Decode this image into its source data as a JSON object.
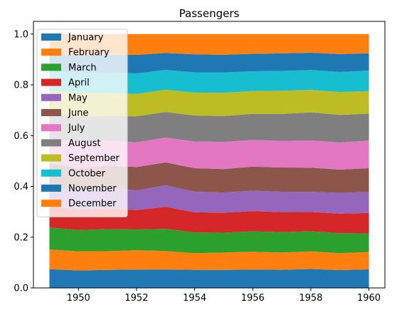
{
  "chart_data": {
    "type": "area",
    "stacked": true,
    "normalized": true,
    "title": "Passengers",
    "xlabel": "",
    "ylabel": "",
    "x": [
      1949,
      1950,
      1951,
      1952,
      1953,
      1954,
      1955,
      1956,
      1957,
      1958,
      1959,
      1960
    ],
    "xlim": [
      1948.45,
      1960.55
    ],
    "ylim": [
      0,
      1.05
    ],
    "xticks": [
      1950,
      1952,
      1954,
      1956,
      1958,
      1960
    ],
    "xtick_labels": [
      "1950",
      "1952",
      "1954",
      "1956",
      "1958",
      "1960"
    ],
    "yticks": [
      0,
      0.2,
      0.4,
      0.6,
      0.8,
      1.0
    ],
    "ytick_labels": [
      "0.0",
      "0.2",
      "0.4",
      "0.6",
      "0.8",
      "1.0"
    ],
    "grid": false,
    "legend_position": "upper-left",
    "series": [
      {
        "name": "January",
        "color": "#1f77b4",
        "values": [
          112,
          115,
          145,
          171,
          196,
          204,
          242,
          284,
          315,
          340,
          360,
          417
        ]
      },
      {
        "name": "February",
        "color": "#ff7f0e",
        "values": [
          118,
          126,
          150,
          180,
          196,
          188,
          233,
          277,
          301,
          318,
          342,
          391
        ]
      },
      {
        "name": "March",
        "color": "#2ca02c",
        "values": [
          132,
          141,
          178,
          193,
          236,
          235,
          267,
          317,
          356,
          362,
          406,
          419
        ]
      },
      {
        "name": "April",
        "color": "#d62728",
        "values": [
          129,
          135,
          163,
          181,
          235,
          227,
          269,
          313,
          348,
          348,
          396,
          461
        ]
      },
      {
        "name": "May",
        "color": "#9467bd",
        "values": [
          121,
          125,
          172,
          183,
          229,
          234,
          270,
          318,
          355,
          363,
          420,
          472
        ]
      },
      {
        "name": "June",
        "color": "#8c564b",
        "values": [
          135,
          149,
          178,
          218,
          243,
          264,
          315,
          374,
          422,
          435,
          472,
          535
        ]
      },
      {
        "name": "July",
        "color": "#e377c2",
        "values": [
          148,
          170,
          199,
          230,
          264,
          302,
          364,
          413,
          465,
          491,
          548,
          622
        ]
      },
      {
        "name": "August",
        "color": "#7f7f7f",
        "values": [
          148,
          170,
          199,
          242,
          272,
          293,
          347,
          405,
          467,
          505,
          559,
          606
        ]
      },
      {
        "name": "September",
        "color": "#bcbd22",
        "values": [
          136,
          158,
          184,
          209,
          237,
          259,
          312,
          355,
          404,
          404,
          463,
          508
        ]
      },
      {
        "name": "October",
        "color": "#17becf",
        "values": [
          119,
          133,
          162,
          191,
          211,
          229,
          274,
          306,
          347,
          359,
          407,
          461
        ]
      },
      {
        "name": "November",
        "color": "#1f77b4",
        "values": [
          104,
          114,
          146,
          172,
          180,
          203,
          237,
          271,
          305,
          310,
          362,
          390
        ]
      },
      {
        "name": "December",
        "color": "#ff7f0e",
        "values": [
          118,
          140,
          166,
          194,
          201,
          229,
          278,
          306,
          336,
          337,
          405,
          432
        ]
      }
    ]
  }
}
